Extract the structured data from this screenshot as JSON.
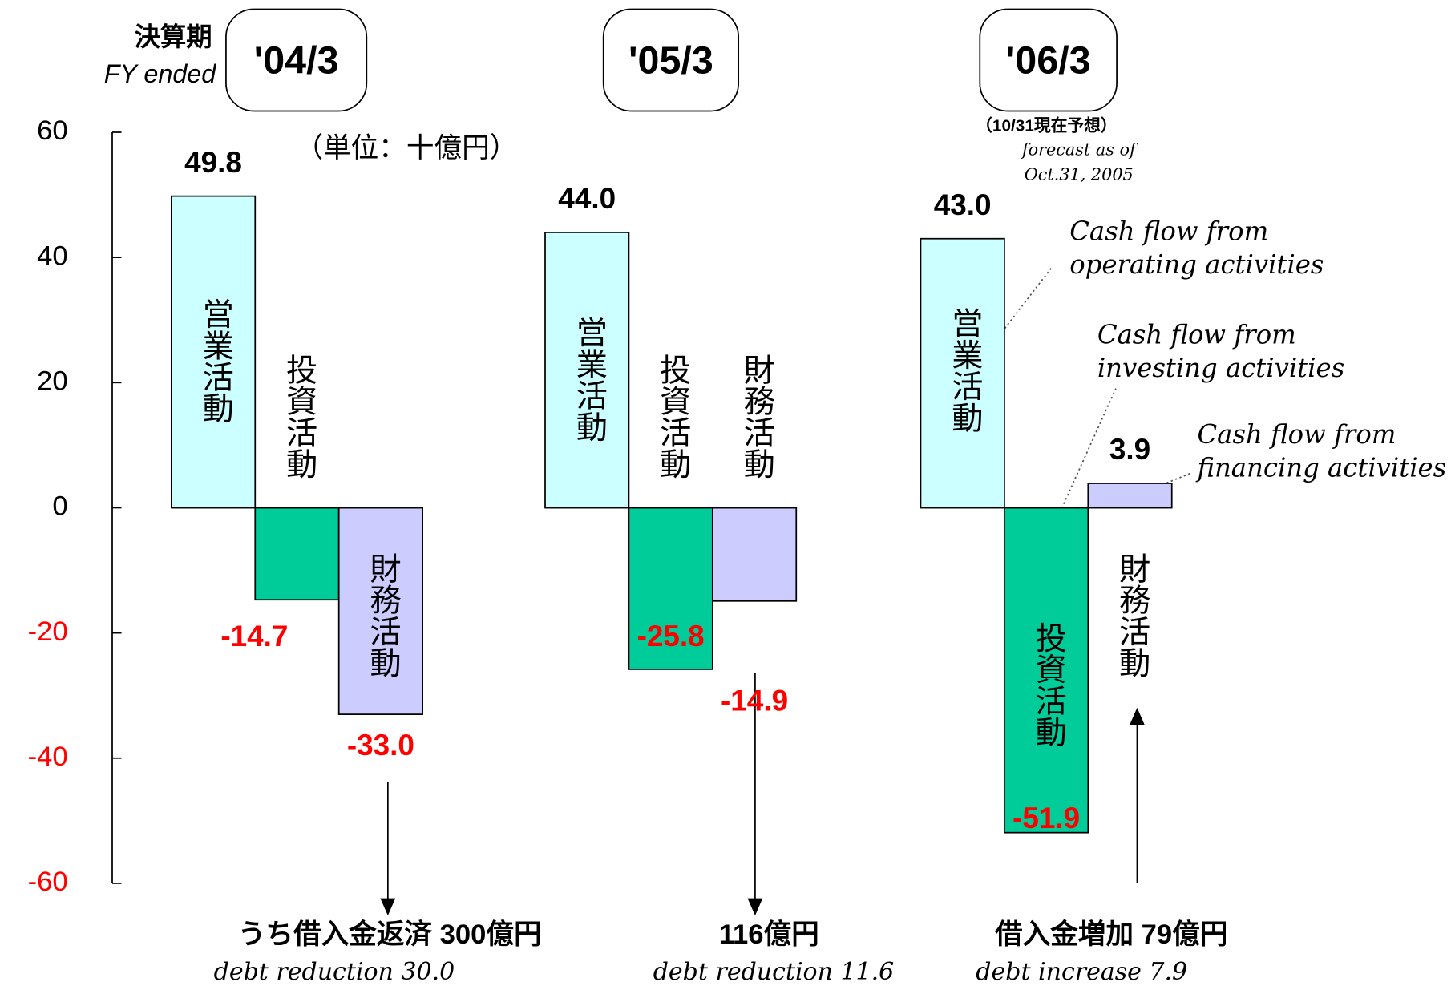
{
  "chart_data": {
    "type": "bar",
    "header_label": "決算期",
    "header_label_en": "FY ended",
    "unit": "（単位：十億円）",
    "forecast_note": "（10/31現在予想）",
    "forecast_note_en": [
      "forecast as of",
      "Oct.31, 2005"
    ],
    "categories": [
      "'04/3",
      "'05/3",
      "'06/3"
    ],
    "series": [
      {
        "name": "営業活動",
        "name_en": [
          "Cash flow from",
          "operating activities"
        ],
        "color": "#ccffff",
        "values": [
          49.8,
          44.0,
          43.0
        ],
        "value_labels": [
          "49.8",
          "44.0",
          "43.0"
        ]
      },
      {
        "name": "投資活動",
        "name_en": [
          "Cash flow from",
          "investing activities"
        ],
        "color": "#00cc99",
        "values": [
          -14.7,
          -25.8,
          -51.9
        ],
        "value_labels": [
          "-14.7",
          "-25.8",
          "-51.9"
        ]
      },
      {
        "name": "財務活動",
        "name_en": [
          "Cash flow from",
          "financing activities"
        ],
        "color": "#ccccff",
        "values": [
          -33.0,
          -14.9,
          3.9
        ],
        "value_labels": [
          "-33.0",
          "-14.9",
          "3.9"
        ]
      }
    ],
    "notes": [
      {
        "text": "うち借入金返済  300億円",
        "text_en": "debt reduction 30.0"
      },
      {
        "text": "116億円",
        "text_en": "debt reduction 11.6"
      },
      {
        "text": "借入金増加  79億円",
        "text_en": "debt increase 7.9"
      }
    ],
    "ylim": [
      -60,
      60
    ],
    "yticks": [
      60,
      40,
      20,
      0,
      -20,
      -40,
      -60
    ]
  }
}
